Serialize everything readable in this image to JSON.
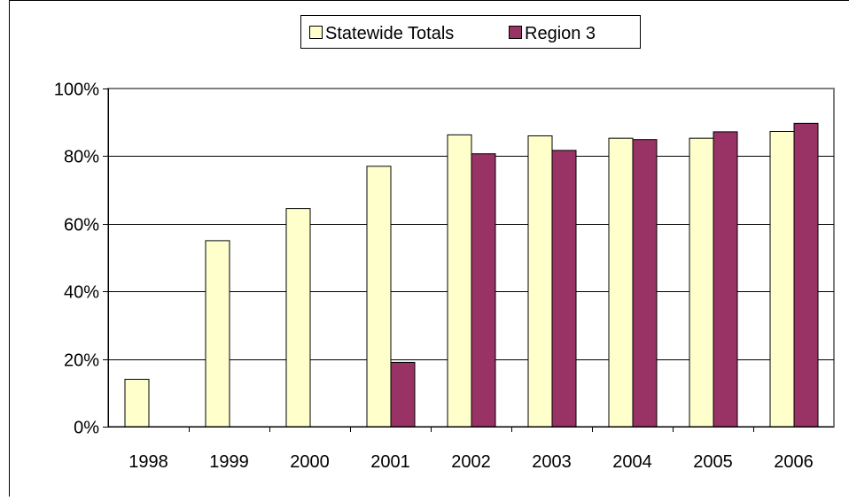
{
  "chart_data": {
    "type": "bar",
    "title": "",
    "xlabel": "",
    "ylabel": "",
    "categories": [
      "1998",
      "1999",
      "2000",
      "2001",
      "2002",
      "2003",
      "2004",
      "2005",
      "2006"
    ],
    "series": [
      {
        "name": "Statewide Totals",
        "color": "#FFFFCC",
        "values": [
          14,
          55,
          64.5,
          77,
          86.3,
          86,
          85.3,
          85.3,
          87.3
        ]
      },
      {
        "name": "Region 3",
        "color": "#993366",
        "values": [
          null,
          null,
          null,
          19,
          80.7,
          81.7,
          84.9,
          87.2,
          89.7
        ]
      }
    ],
    "ylim": [
      0,
      100
    ],
    "y_ticks": [
      0,
      20,
      40,
      60,
      80,
      100
    ],
    "y_tick_labels": [
      "0%",
      "20%",
      "40%",
      "60%",
      "80%",
      "100%"
    ],
    "grid": true,
    "legend_position": "top-center"
  }
}
